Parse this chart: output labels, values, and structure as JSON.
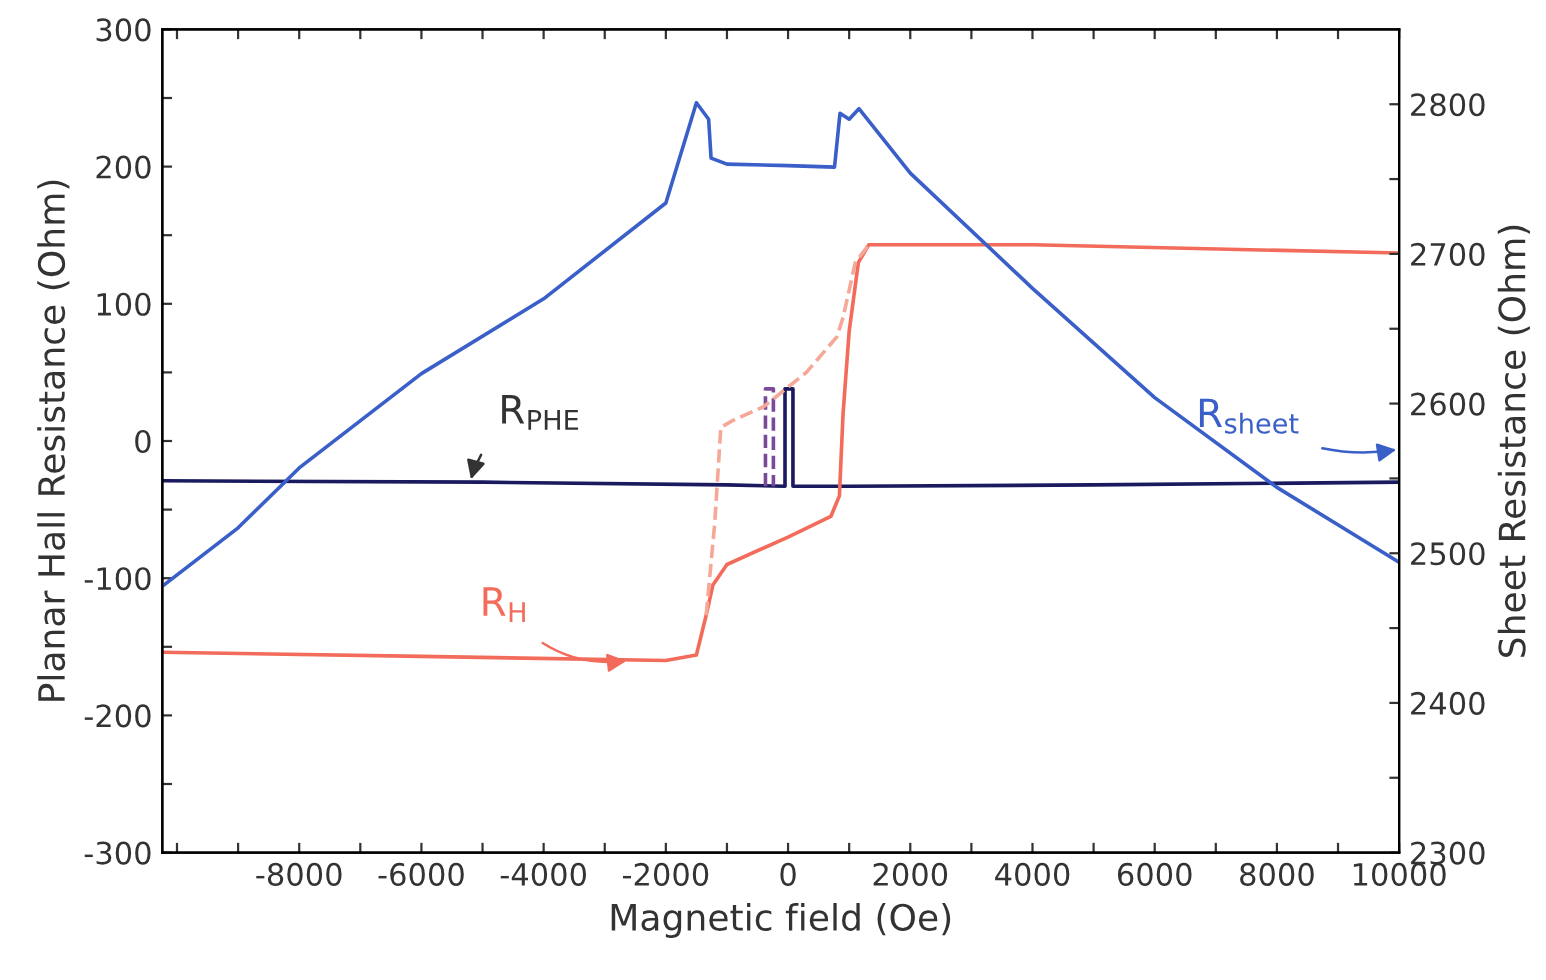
{
  "chart_data": {
    "type": "line",
    "xlabel": "Magnetic field (Oe)",
    "ylabel": "Planar Hall Resistance (Ohm)",
    "y2label": "Sheet Resistance (Ohm)",
    "xlim": [
      -10240,
      10000
    ],
    "xticks": [
      {
        "value": -10000,
        "label": null
      },
      {
        "value": -9000,
        "label": null
      },
      -8000,
      {
        "value": -7000,
        "label": null
      },
      -6000,
      {
        "value": -5000,
        "label": null
      },
      -4000,
      {
        "value": -3000,
        "label": null
      },
      -2000,
      {
        "value": -1000,
        "label": null
      },
      0,
      {
        "value": 1000,
        "label": null
      },
      2000,
      {
        "value": 3000,
        "label": null
      },
      4000,
      {
        "value": 5000,
        "label": null
      },
      6000,
      {
        "value": 7000,
        "label": null
      },
      8000,
      {
        "value": 9000,
        "label": null
      },
      10000
    ],
    "ylim": [
      -300,
      300
    ],
    "yticks": [
      -300,
      {
        "value": -250,
        "label": null
      },
      -200,
      {
        "value": -150,
        "label": null
      },
      -100,
      {
        "value": -50,
        "label": null
      },
      0,
      {
        "value": 50,
        "label": null
      },
      100,
      {
        "value": 150,
        "label": null
      },
      200,
      {
        "value": 250,
        "label": null
      },
      300
    ],
    "y2lim": [
      2300,
      2850
    ],
    "y2ticks": [
      2300,
      {
        "value": 2350,
        "label": null
      },
      2400,
      {
        "value": 2450,
        "label": null
      },
      2500,
      {
        "value": 2550,
        "label": null
      },
      2600,
      {
        "value": 2650,
        "label": null
      },
      2700,
      {
        "value": 2750,
        "label": null
      },
      2800
    ],
    "grid": false,
    "marker": "none",
    "series": [
      {
        "color": "#3a5fc8",
        "axis": "y2",
        "line_style": "solid",
        "x": [
          -10240,
          -9000,
          -8000,
          -6000,
          -4000,
          -2000,
          -1500,
          -1300,
          -1260,
          -1000,
          0,
          760,
          850,
          1000,
          1160,
          2000,
          4000,
          6000,
          8000,
          10000
        ],
        "values": [
          2478,
          2517,
          2557,
          2620,
          2670,
          2734,
          2801,
          2790,
          2764,
          2760,
          2759,
          2758,
          2794,
          2790,
          2797,
          2754,
          2677,
          2604,
          2544,
          2494
        ]
      },
      {
        "color": "#1a1a5e",
        "line_style": "solid",
        "x": [
          -10240,
          -5000,
          -1000,
          -50,
          -50,
          80,
          80,
          1000,
          5000,
          10000
        ],
        "values": [
          -29,
          -30,
          -32,
          -33,
          38,
          38,
          -33,
          -33,
          -32,
          -30
        ]
      },
      {
        "color": "#7a4a9a",
        "line_style": "dashed",
        "x": [
          -370,
          -370,
          -240,
          -240
        ],
        "values": [
          -33,
          38,
          38,
          -33
        ]
      },
      {
        "color": "#f26b5b",
        "line_style": "solid",
        "x": [
          -10240,
          -6000,
          -2000,
          -1500,
          -1340,
          -1230,
          -1000,
          0,
          700,
          840,
          900,
          1000,
          1150,
          1320,
          4000,
          10000
        ],
        "values": [
          -154,
          -157,
          -160,
          -156,
          -127,
          -105,
          -90,
          -70,
          -55,
          -40,
          20,
          80,
          130,
          143,
          143,
          137
        ]
      },
      {
        "color": "#f5a898",
        "line_style": "dashed",
        "x": [
          -1340,
          -1200,
          -1100,
          -900,
          -400,
          300,
          800,
          900,
          1100,
          1320
        ],
        "values": [
          -127,
          -60,
          10,
          15,
          25,
          50,
          76,
          90,
          130,
          143
        ]
      }
    ],
    "annotations": [
      {
        "text": "R$_{PHE}$",
        "x": -5200,
        "y": -30
      },
      {
        "text": "R$_{H}$",
        "x": -2600,
        "y": -160
      },
      "R$_{sheet}$"
    ]
  }
}
